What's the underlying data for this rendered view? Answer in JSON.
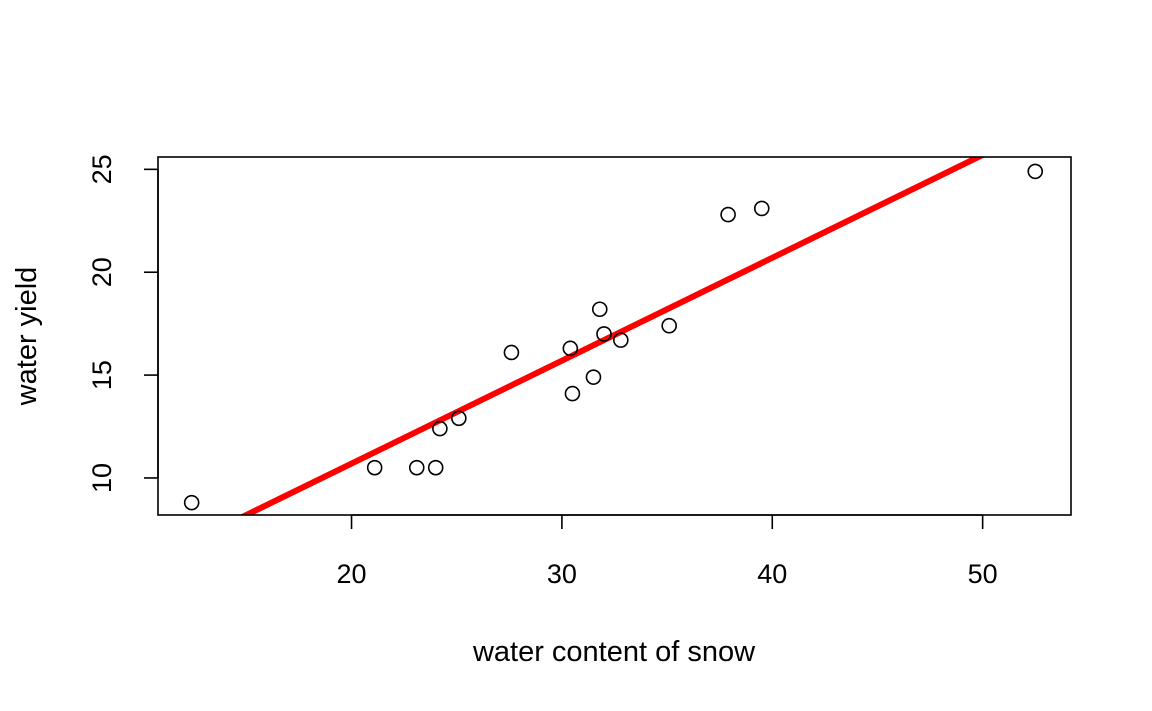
{
  "chart_data": {
    "type": "scatter",
    "xlabel": "water content of snow",
    "ylabel": "water yield",
    "xlim": [
      10.8,
      54.2
    ],
    "ylim": [
      8.2,
      25.6
    ],
    "x_ticks": [
      20,
      30,
      40,
      50
    ],
    "y_ticks": [
      10,
      15,
      20,
      25
    ],
    "grid": false,
    "legend": "none",
    "points": [
      {
        "x": 12.4,
        "y": 8.8
      },
      {
        "x": 21.1,
        "y": 10.5
      },
      {
        "x": 23.1,
        "y": 10.5
      },
      {
        "x": 24.0,
        "y": 10.5
      },
      {
        "x": 24.2,
        "y": 12.4
      },
      {
        "x": 25.1,
        "y": 12.9
      },
      {
        "x": 27.6,
        "y": 16.1
      },
      {
        "x": 30.4,
        "y": 16.3
      },
      {
        "x": 30.5,
        "y": 14.1
      },
      {
        "x": 31.5,
        "y": 14.9
      },
      {
        "x": 31.8,
        "y": 18.2
      },
      {
        "x": 32.0,
        "y": 17.0
      },
      {
        "x": 32.8,
        "y": 16.7
      },
      {
        "x": 35.1,
        "y": 17.4
      },
      {
        "x": 37.9,
        "y": 22.8
      },
      {
        "x": 39.5,
        "y": 23.1
      },
      {
        "x": 52.5,
        "y": 24.9
      }
    ],
    "fit_line": {
      "intercept": 0.7,
      "slope": 0.5
    },
    "colors": {
      "points": "#000000",
      "fit_line": "#ff0000",
      "frame": "#000000"
    }
  }
}
